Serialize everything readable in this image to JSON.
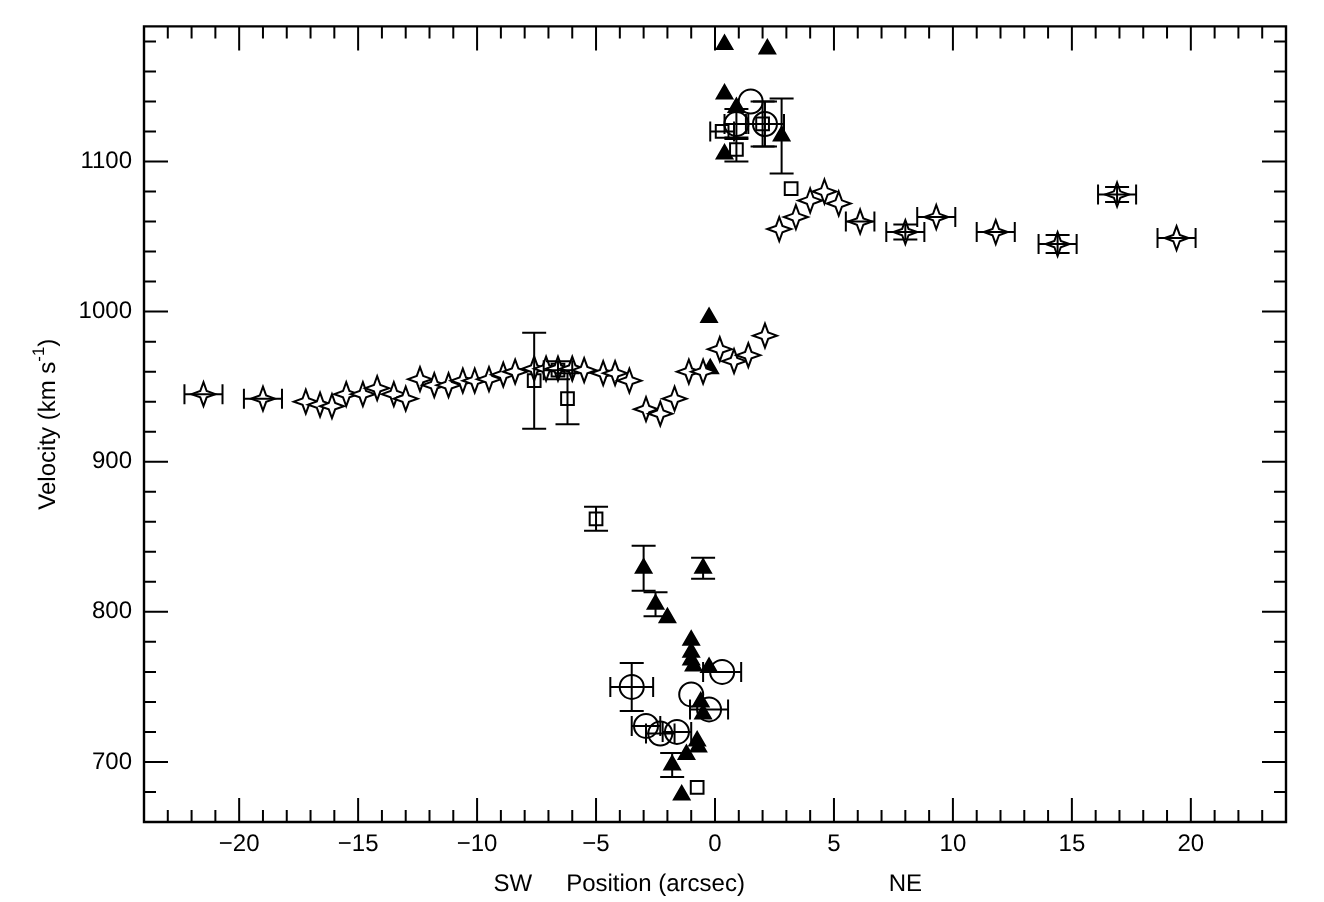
{
  "chart_data": {
    "type": "scatter",
    "xlabel": "Position (arcsec)",
    "ylabel": "Velocity (km s$^{-1}$)",
    "annotations": [
      "SW",
      "NE"
    ],
    "xlim": [
      -24,
      24
    ],
    "ylim": [
      660,
      1190
    ],
    "grid": false,
    "legend": false,
    "xticks": [
      {
        "value": -23,
        "label": null
      },
      {
        "value": -22,
        "label": null
      },
      {
        "value": -21,
        "label": null
      },
      -20,
      {
        "value": -19,
        "label": null
      },
      {
        "value": -18,
        "label": null
      },
      {
        "value": -17,
        "label": null
      },
      {
        "value": -16,
        "label": null
      },
      -15,
      {
        "value": -14,
        "label": null
      },
      {
        "value": -13,
        "label": null
      },
      {
        "value": -12,
        "label": null
      },
      {
        "value": -11,
        "label": null
      },
      -10,
      {
        "value": -9,
        "label": null
      },
      {
        "value": -8,
        "label": null
      },
      {
        "value": -7,
        "label": null
      },
      {
        "value": -6,
        "label": null
      },
      -5,
      {
        "value": -4,
        "label": null
      },
      {
        "value": -3,
        "label": null
      },
      {
        "value": -2,
        "label": null
      },
      {
        "value": -1,
        "label": null
      },
      0,
      {
        "value": 1,
        "label": null
      },
      {
        "value": 2,
        "label": null
      },
      {
        "value": 3,
        "label": null
      },
      {
        "value": 4,
        "label": null
      },
      5,
      {
        "value": 6,
        "label": null
      },
      {
        "value": 7,
        "label": null
      },
      {
        "value": 8,
        "label": null
      },
      {
        "value": 9,
        "label": null
      },
      10,
      {
        "value": 11,
        "label": null
      },
      {
        "value": 12,
        "label": null
      },
      {
        "value": 13,
        "label": null
      },
      {
        "value": 14,
        "label": null
      },
      15,
      {
        "value": 16,
        "label": null
      },
      {
        "value": 17,
        "label": null
      },
      {
        "value": 18,
        "label": null
      },
      {
        "value": 19,
        "label": null
      },
      20,
      {
        "value": 21,
        "label": null
      },
      {
        "value": 22,
        "label": null
      },
      {
        "value": 23,
        "label": null
      }
    ],
    "yticks": [
      {
        "value": 660,
        "label": null
      },
      {
        "value": 680,
        "label": null
      },
      700,
      {
        "value": 720,
        "label": null
      },
      {
        "value": 740,
        "label": null
      },
      {
        "value": 760,
        "label": null
      },
      {
        "value": 780,
        "label": null
      },
      800,
      {
        "value": 820,
        "label": null
      },
      {
        "value": 840,
        "label": null
      },
      {
        "value": 860,
        "label": null
      },
      {
        "value": 880,
        "label": null
      },
      900,
      {
        "value": 920,
        "label": null
      },
      {
        "value": 940,
        "label": null
      },
      {
        "value": 960,
        "label": null
      },
      {
        "value": 980,
        "label": null
      },
      1000,
      {
        "value": 1020,
        "label": null
      },
      {
        "value": 1040,
        "label": null
      },
      {
        "value": 1060,
        "label": null
      },
      {
        "value": 1080,
        "label": null
      },
      1100,
      {
        "value": 1120,
        "label": null
      },
      {
        "value": 1140,
        "label": null
      },
      {
        "value": 1160,
        "label": null
      },
      {
        "value": 1180,
        "label": null
      }
    ],
    "series": [
      {
        "marker": "star",
        "color": "#000000",
        "x": [
          -21.5,
          -19.0,
          -17.2,
          -16.6,
          -16.1,
          -15.5,
          -14.8,
          -14.2,
          -13.5,
          -13.0,
          -12.4,
          -11.8,
          -11.2,
          -10.6,
          -10.1,
          -9.5,
          -8.9,
          -8.4,
          -7.6,
          -7.1,
          -6.6,
          -6.0,
          -5.5,
          -4.7,
          -4.2,
          -3.6,
          -2.9,
          -2.3,
          -1.7,
          -1.1,
          -0.5,
          0.2,
          0.8,
          1.4,
          2.1,
          2.7,
          3.4,
          4.0,
          4.6,
          5.2,
          6.1,
          8.0,
          9.3,
          11.8,
          14.4,
          16.9,
          19.4
        ],
        "values": [
          945,
          942,
          940,
          938,
          937,
          945,
          945,
          949,
          945,
          942,
          955,
          951,
          951,
          954,
          954,
          955,
          958,
          960,
          962,
          962,
          962,
          962,
          961,
          959,
          959,
          954,
          935,
          932,
          942,
          960,
          960,
          975,
          967,
          971,
          984,
          1055,
          1063,
          1074,
          1080,
          1072,
          1060,
          1053,
          1063,
          1053,
          1045,
          1078,
          1049
        ],
        "errors": [
          null,
          null,
          null,
          null,
          null,
          null,
          null,
          null,
          null,
          null,
          null,
          null,
          null,
          null,
          null,
          null,
          null,
          null,
          null,
          null,
          null,
          null,
          null,
          null,
          null,
          null,
          null,
          null,
          null,
          null,
          null,
          null,
          null,
          null,
          null,
          null,
          null,
          null,
          null,
          null,
          null,
          5,
          null,
          null,
          6,
          5,
          null
        ],
        "xerrors": [
          0.8,
          0.8,
          null,
          null,
          null,
          null,
          null,
          null,
          null,
          null,
          null,
          null,
          null,
          null,
          null,
          null,
          null,
          null,
          null,
          null,
          null,
          null,
          null,
          null,
          null,
          null,
          null,
          null,
          null,
          null,
          null,
          null,
          null,
          null,
          null,
          null,
          null,
          null,
          null,
          null,
          0.6,
          0.8,
          0.8,
          0.8,
          0.8,
          0.8,
          0.8
        ]
      },
      {
        "marker": "triangle",
        "color": "#000000",
        "x": [
          0.4,
          2.2,
          0.4,
          0.9,
          2.8,
          0.4,
          -0.25,
          -0.2,
          -3.0,
          -0.5,
          -2.5,
          -2.0,
          -1.0,
          -1.0,
          -1.0,
          -0.9,
          -0.25,
          -0.6,
          -0.5,
          -0.75,
          -0.7,
          -1.2,
          -1.8,
          -1.4
        ],
        "values": [
          1178,
          1175,
          1145,
          1136,
          1117,
          1105,
          996,
          962,
          829,
          829,
          805,
          796,
          781,
          773,
          768,
          764,
          763,
          740,
          732,
          714,
          710,
          705,
          698,
          678
        ],
        "errors": [
          null,
          null,
          null,
          null,
          25,
          null,
          null,
          null,
          15,
          7,
          8,
          null,
          null,
          null,
          null,
          null,
          null,
          null,
          null,
          null,
          null,
          null,
          8,
          null
        ]
      },
      {
        "marker": "circle",
        "color": "#000000",
        "x": [
          1.5,
          0.9,
          2.1,
          -3.5,
          0.3,
          -1.0,
          -0.25,
          -2.9,
          -2.3,
          -1.6
        ],
        "values": [
          1140,
          1125,
          1125,
          750,
          760,
          745,
          735,
          724,
          719,
          720
        ],
        "errors": [
          null,
          10,
          15,
          16,
          null,
          null,
          null,
          null,
          null,
          null
        ],
        "xerrors": [
          null,
          0.5,
          0.8,
          0.9,
          0.8,
          null,
          0.8,
          0.6,
          0.6,
          0.6
        ]
      },
      {
        "marker": "square",
        "color": "#000000",
        "x": [
          -7.6,
          -6.6,
          -6.2,
          0.3,
          0.9,
          2.0,
          3.2,
          -5.0,
          -0.75
        ],
        "values": [
          954,
          961,
          942,
          1120,
          1108,
          1125,
          1082,
          862,
          683
        ],
        "errors": [
          32,
          6,
          17,
          null,
          8,
          15,
          null,
          8,
          null
        ],
        "xerrors": [
          null,
          0.6,
          null,
          0.5,
          null,
          null,
          null,
          null,
          null
        ]
      }
    ]
  }
}
